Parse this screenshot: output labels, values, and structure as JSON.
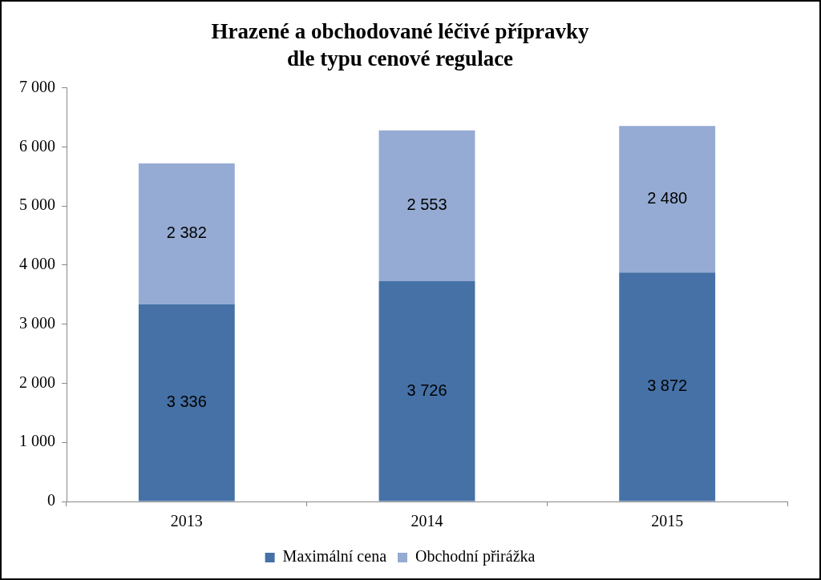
{
  "chart_data": {
    "type": "bar",
    "stacked": true,
    "title": [
      "Hrazené a obchodované léčivé přípravky",
      "dle typu cenové regulace"
    ],
    "categories": [
      "2013",
      "2014",
      "2015"
    ],
    "series": [
      {
        "name": "Maximální cena",
        "color": "#4571a6",
        "values": [
          3336,
          3726,
          3872
        ],
        "value_labels": [
          "3 336",
          "3 726",
          "3 872"
        ]
      },
      {
        "name": "Obchodní přirážka",
        "color": "#95abd3",
        "values": [
          2382,
          2553,
          2480
        ],
        "value_labels": [
          "2 382",
          "2 553",
          "2 480"
        ]
      }
    ],
    "ylim": [
      0,
      7000
    ],
    "yticks": [
      {
        "value": 0,
        "label": "0"
      },
      {
        "value": 1000,
        "label": "1 000"
      },
      {
        "value": 2000,
        "label": "2 000"
      },
      {
        "value": 3000,
        "label": "3 000"
      },
      {
        "value": 4000,
        "label": "4 000"
      },
      {
        "value": 5000,
        "label": "5 000"
      },
      {
        "value": 6000,
        "label": "6 000"
      },
      {
        "value": 7000,
        "label": "7 000"
      }
    ],
    "grid": false,
    "legend": "bottom",
    "data_labels": true
  }
}
